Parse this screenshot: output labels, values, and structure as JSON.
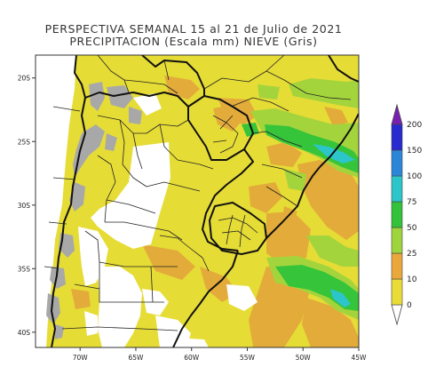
{
  "title": {
    "line1": "PERSPECTIVA SEMANAL  15 al 21 de Julio de 2021",
    "line2": "PRECIPITACION (Escala mm) NIEVE (Gris)"
  },
  "axes": {
    "lat_ticks": [
      {
        "deg": -20,
        "label": "20S"
      },
      {
        "deg": -25,
        "label": "25S"
      },
      {
        "deg": -30,
        "label": "30S"
      },
      {
        "deg": -35,
        "label": "35S"
      },
      {
        "deg": -40,
        "label": "40S"
      }
    ],
    "lon_ticks": [
      {
        "deg": -70,
        "label": "70W"
      },
      {
        "deg": -65,
        "label": "65W"
      },
      {
        "deg": -60,
        "label": "60W"
      },
      {
        "deg": -55,
        "label": "55W"
      },
      {
        "deg": -50,
        "label": "50W"
      },
      {
        "deg": -45,
        "label": "45W"
      }
    ],
    "lon_range": [
      -74,
      -45
    ],
    "lat_range": [
      -41.2,
      -18.2
    ]
  },
  "legend": {
    "levels": [
      {
        "value": "0",
        "color": "#e9dc38"
      },
      {
        "value": "10",
        "color": "#eaa83c"
      },
      {
        "value": "25",
        "color": "#9ed43c"
      },
      {
        "value": "50",
        "color": "#33c23a"
      },
      {
        "value": "75",
        "color": "#2cc5c9"
      },
      {
        "value": "100",
        "color": "#2b86d8"
      },
      {
        "value": "150",
        "color": "#2929d0"
      },
      {
        "value": "200",
        "color": "#7a1fb3"
      }
    ]
  },
  "colors": {
    "yellow": "#e6dc36",
    "orange": "#e3ab3a",
    "lightgreen": "#a4d43c",
    "green": "#36c43a",
    "cyan": "#2cc5c9",
    "snow": "#a8a8a8",
    "white": "#ffffff",
    "border": "#111111"
  }
}
